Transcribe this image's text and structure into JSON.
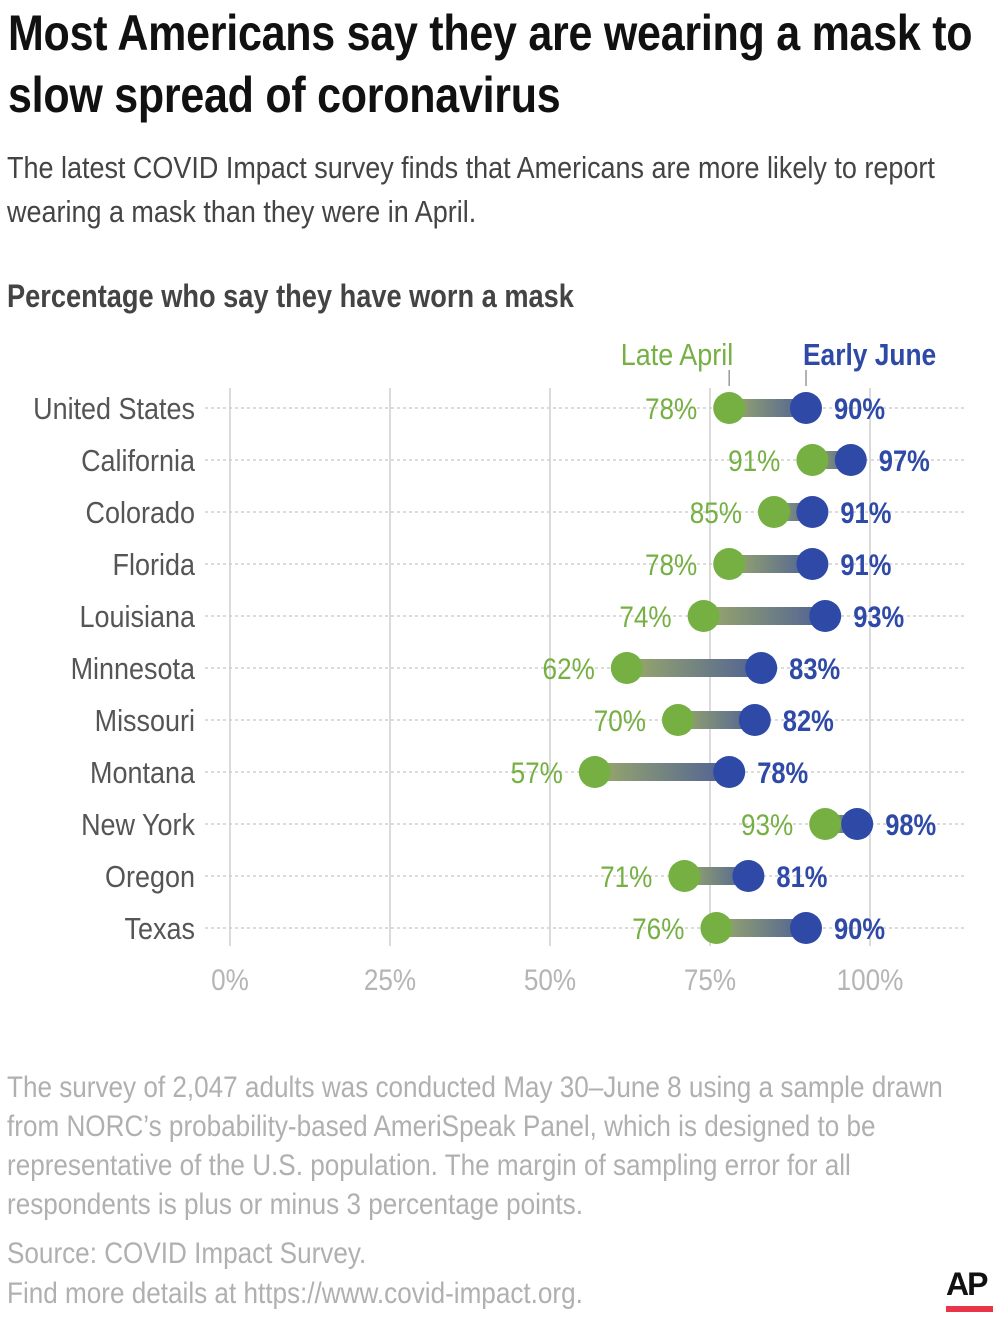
{
  "title": "Most Americans say they are wearing a mask to slow spread of coronavirus",
  "subtitle": "The latest COVID Impact survey finds that Americans are more likely to report wearing a mask than they were in April.",
  "chart_data": {
    "type": "dumbbell",
    "title": "Percentage who say they have worn a mask",
    "categories": [
      "United States",
      "California",
      "Colorado",
      "Florida",
      "Louisiana",
      "Minnesota",
      "Missouri",
      "Montana",
      "New York",
      "Oregon",
      "Texas"
    ],
    "series": [
      {
        "name": "Late April",
        "color": "#76b043",
        "values": [
          78,
          91,
          85,
          78,
          74,
          62,
          70,
          57,
          93,
          71,
          76
        ]
      },
      {
        "name": "Early June",
        "color": "#2f4aa6",
        "values": [
          90,
          97,
          91,
          91,
          93,
          83,
          82,
          78,
          98,
          81,
          90
        ]
      }
    ],
    "xlim": [
      0,
      100
    ],
    "xticks": [
      "0%",
      "25%",
      "50%",
      "75%",
      "100%"
    ],
    "xtick_values": [
      0,
      25,
      50,
      75,
      100
    ],
    "grid": true,
    "legend": "top-right"
  },
  "note": "The survey of 2,047 adults was conducted May 30–June 8 using a sample drawn from NORC’s probability-based AmeriSpeak Panel, which is designed to be representative of the U.S. population. The margin of sampling error for all respondents is plus or minus 3 percentage points.",
  "source": "Source: COVID Impact Survey.",
  "details": "Find more details at https://www.covid-impact.org.",
  "logo": "AP"
}
